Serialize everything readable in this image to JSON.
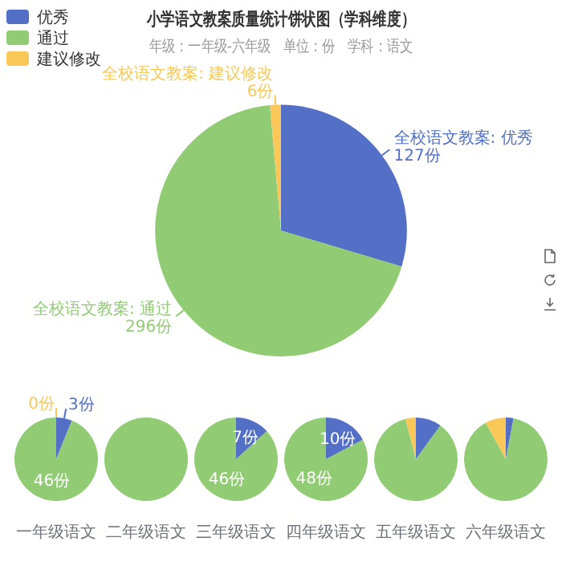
{
  "chart_data": [
    {
      "type": "pie",
      "title": "小学语文教案质量统计饼状图（学科维度）",
      "subtitle": "年级：一年级-六年级　单位：份　学科：语文",
      "categories": [
        "优秀",
        "通过",
        "建议修改"
      ],
      "values": [
        127,
        296,
        6
      ],
      "colors": [
        "#5470c6",
        "#91cc75",
        "#fac858"
      ],
      "value_labels": [
        "全校语文教案: 优秀 127份",
        "全校语文教案: 通过 296份",
        "全校语文教案: 建议修改 6份"
      ],
      "legend": "top left"
    },
    {
      "type": "pie",
      "title": "一年级语文",
      "values": [
        3,
        46,
        0
      ],
      "colors": [
        "#5470c6",
        "#91cc75",
        "#fac858"
      ],
      "value_labels": [
        "3份",
        "46份",
        "0份"
      ]
    },
    {
      "type": "pie",
      "title": "二年级语文",
      "values": [
        0,
        100,
        0
      ],
      "colors": [
        "#5470c6",
        "#91cc75",
        "#fac858"
      ]
    },
    {
      "type": "pie",
      "title": "三年级语文",
      "values": [
        7,
        46,
        0
      ],
      "colors": [
        "#5470c6",
        "#91cc75",
        "#fac858"
      ],
      "value_labels": [
        "7份",
        "46份",
        null
      ]
    },
    {
      "type": "pie",
      "title": "四年级语文",
      "values": [
        10,
        48,
        0
      ],
      "colors": [
        "#5470c6",
        "#91cc75",
        "#fac858"
      ],
      "value_labels": [
        "10份",
        "48份",
        null
      ]
    },
    {
      "type": "pie",
      "title": "五年级语文",
      "values": [
        10,
        86,
        4
      ],
      "colors": [
        "#5470c6",
        "#91cc75",
        "#fac858"
      ]
    },
    {
      "type": "pie",
      "title": "六年级语文",
      "values": [
        3,
        89,
        8
      ],
      "colors": [
        "#5470c6",
        "#91cc75",
        "#fac858"
      ]
    }
  ]
}
